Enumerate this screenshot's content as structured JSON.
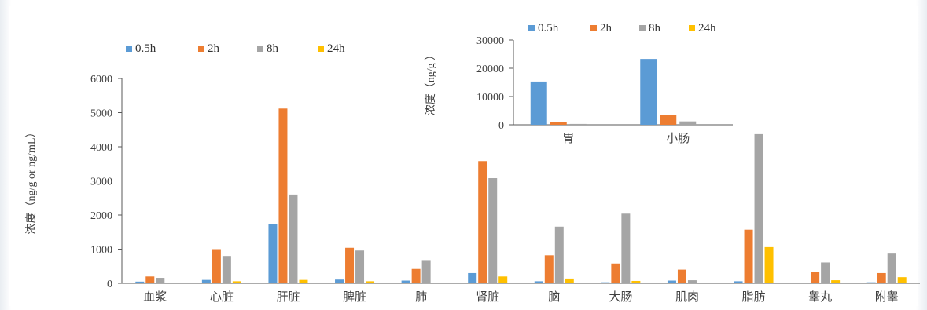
{
  "chart_data": [
    {
      "type": "bar",
      "ylabel": "浓度（ng/g or ng/mL）",
      "ylim": [
        0,
        6000
      ],
      "yticks": [
        0,
        1000,
        2000,
        3000,
        4000,
        5000,
        6000
      ],
      "legend_position": "top-left",
      "grid": false,
      "categories": [
        "血浆",
        "心脏",
        "肝脏",
        "脾脏",
        "肺",
        "肾脏",
        "脑",
        "大肠",
        "肌肉",
        "脂肪",
        "睾丸",
        "附睾"
      ],
      "series": [
        {
          "name": "0.5h",
          "color": "#5b9bd5",
          "values": [
            50,
            100,
            1730,
            110,
            80,
            300,
            60,
            30,
            80,
            60,
            0,
            30
          ]
        },
        {
          "name": "2h",
          "color": "#ed7d31",
          "values": [
            200,
            1000,
            5120,
            1040,
            420,
            3580,
            820,
            580,
            400,
            1570,
            340,
            300
          ]
        },
        {
          "name": "8h",
          "color": "#a5a5a5",
          "values": [
            160,
            800,
            2600,
            960,
            680,
            3080,
            1660,
            2040,
            90,
            4370,
            610,
            870
          ]
        },
        {
          "name": "24h",
          "color": "#ffc000",
          "values": [
            0,
            60,
            100,
            60,
            0,
            200,
            140,
            70,
            0,
            1060,
            90,
            180
          ]
        }
      ]
    },
    {
      "type": "bar",
      "ylabel": "浓度（ng/g ）",
      "ylim": [
        0,
        30000
      ],
      "yticks": [
        0,
        10000,
        20000,
        30000
      ],
      "legend_position": "top",
      "grid": false,
      "categories": [
        "胃",
        "小肠"
      ],
      "series": [
        {
          "name": "0.5h",
          "color": "#5b9bd5",
          "values": [
            15300,
            23300
          ]
        },
        {
          "name": "2h",
          "color": "#ed7d31",
          "values": [
            900,
            3600
          ]
        },
        {
          "name": "8h",
          "color": "#a5a5a5",
          "values": [
            300,
            1200
          ]
        },
        {
          "name": "24h",
          "color": "#ffc000",
          "values": [
            0,
            0
          ]
        }
      ]
    }
  ]
}
